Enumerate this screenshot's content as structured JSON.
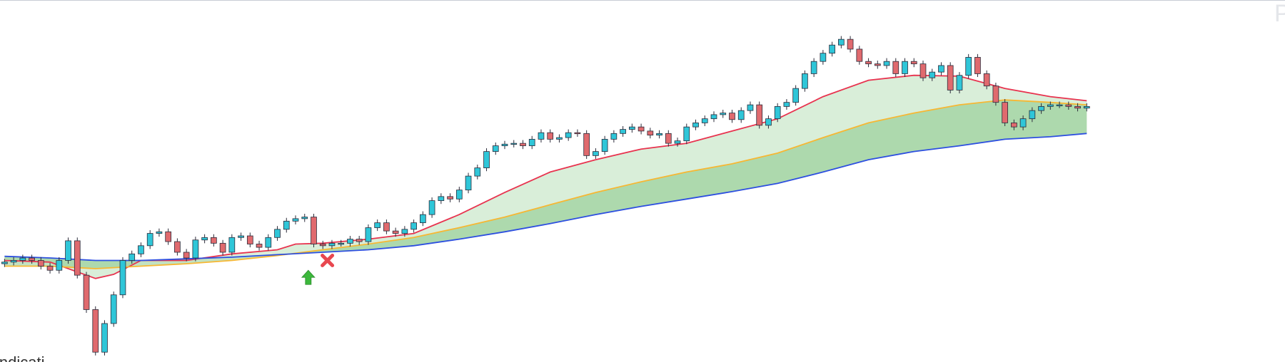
{
  "chart_data": {
    "type": "candlestick",
    "watermark": "P",
    "footer": "indicati",
    "up_color": "#2fc6d8",
    "down_color": "#e06a6e",
    "outline_color": "#2b2b3a",
    "xlim": [
      -0.5,
      140.8
    ],
    "ylim": [
      0,
      442
    ],
    "open": [
      120,
      122,
      124,
      127,
      124,
      117,
      112,
      124,
      148,
      106,
      64,
      12,
      47,
      82,
      124,
      132,
      142,
      157,
      159,
      147,
      134,
      127,
      149,
      152,
      145,
      134,
      152,
      154,
      144,
      140,
      152,
      162,
      172,
      175,
      177,
      144,
      142,
      145,
      145,
      150,
      147,
      164,
      170,
      160,
      157,
      162,
      170,
      180,
      197,
      202,
      199,
      210,
      227,
      237,
      257,
      264,
      266,
      267,
      264,
      272,
      280,
      272,
      274,
      280,
      279,
      252,
      257,
      272,
      279,
      284,
      287,
      282,
      277,
      279,
      267,
      270,
      287,
      292,
      297,
      302,
      304,
      296,
      307,
      314,
      289,
      297,
      312,
      317,
      334,
      352,
      367,
      377,
      387,
      394,
      382,
      367,
      364,
      362,
      367,
      352,
      367,
      364,
      347,
      354,
      362,
      332,
      350,
      372,
      352,
      337,
      317,
      292,
      287,
      297,
      307,
      312,
      314,
      314,
      312,
      310
    ],
    "high": [
      126,
      128,
      131,
      131,
      128,
      121,
      128,
      152,
      152,
      110,
      68,
      51,
      86,
      128,
      136,
      146,
      161,
      163,
      163,
      151,
      138,
      153,
      156,
      156,
      149,
      156,
      158,
      158,
      148,
      156,
      166,
      176,
      179,
      181,
      181,
      148,
      149,
      149,
      154,
      154,
      168,
      174,
      174,
      164,
      166,
      174,
      184,
      201,
      206,
      206,
      214,
      231,
      241,
      261,
      268,
      270,
      271,
      271,
      276,
      284,
      284,
      278,
      284,
      284,
      283,
      261,
      276,
      283,
      288,
      291,
      291,
      286,
      283,
      283,
      274,
      291,
      296,
      301,
      306,
      308,
      308,
      311,
      318,
      318,
      301,
      316,
      321,
      338,
      356,
      371,
      381,
      391,
      398,
      398,
      386,
      371,
      368,
      371,
      371,
      371,
      371,
      368,
      358,
      366,
      366,
      354,
      376,
      376,
      356,
      341,
      321,
      296,
      301,
      311,
      316,
      318,
      318,
      318,
      316,
      316
    ],
    "low": [
      116,
      118,
      120,
      120,
      113,
      108,
      108,
      120,
      102,
      60,
      8,
      8,
      43,
      78,
      120,
      128,
      138,
      153,
      143,
      130,
      123,
      123,
      145,
      141,
      130,
      130,
      148,
      140,
      136,
      136,
      148,
      158,
      168,
      171,
      140,
      138,
      138,
      141,
      141,
      143,
      143,
      160,
      156,
      153,
      153,
      158,
      166,
      176,
      193,
      195,
      195,
      206,
      223,
      233,
      253,
      260,
      262,
      260,
      260,
      268,
      268,
      268,
      270,
      275,
      248,
      248,
      253,
      268,
      275,
      280,
      278,
      273,
      273,
      263,
      263,
      266,
      283,
      288,
      293,
      298,
      292,
      292,
      303,
      285,
      285,
      293,
      308,
      313,
      330,
      348,
      363,
      373,
      383,
      378,
      363,
      360,
      358,
      358,
      348,
      348,
      360,
      343,
      343,
      350,
      328,
      328,
      346,
      348,
      333,
      313,
      288,
      283,
      283,
      293,
      303,
      308,
      310,
      308,
      306,
      306
    ],
    "close": [
      122,
      124,
      127,
      124,
      117,
      112,
      124,
      148,
      106,
      64,
      12,
      47,
      82,
      124,
      132,
      142,
      157,
      159,
      147,
      134,
      127,
      149,
      152,
      145,
      134,
      152,
      154,
      144,
      140,
      152,
      162,
      172,
      175,
      177,
      144,
      142,
      145,
      145,
      150,
      147,
      164,
      170,
      160,
      157,
      162,
      170,
      180,
      197,
      202,
      199,
      210,
      227,
      237,
      257,
      264,
      266,
      267,
      264,
      272,
      280,
      272,
      274,
      280,
      279,
      252,
      257,
      272,
      279,
      284,
      287,
      282,
      277,
      279,
      267,
      270,
      287,
      292,
      297,
      302,
      304,
      296,
      307,
      314,
      289,
      297,
      312,
      317,
      334,
      352,
      367,
      377,
      387,
      394,
      382,
      367,
      364,
      362,
      367,
      352,
      367,
      364,
      347,
      354,
      362,
      332,
      350,
      372,
      352,
      337,
      317,
      292,
      287,
      297,
      307,
      312,
      314,
      314,
      312,
      310,
      312
    ],
    "lines": [
      {
        "color": "#e8334f",
        "x": [
          0,
          5,
          10,
          12,
          15,
          20,
          25,
          30,
          32,
          35,
          40,
          45,
          50,
          55,
          60,
          65,
          70,
          75,
          80,
          85,
          90,
          95,
          100,
          105,
          110,
          115,
          119
        ],
        "values": [
          124,
          122,
          102,
          107,
          124,
          124,
          132,
          137,
          144,
          145,
          150,
          157,
          180,
          207,
          232,
          247,
          260,
          267,
          282,
          297,
          324,
          344,
          350,
          349,
          334,
          324,
          319
        ]
      },
      {
        "color": "#f7b733",
        "x": [
          0,
          5,
          10,
          15,
          20,
          25,
          30,
          35,
          40,
          45,
          50,
          55,
          60,
          65,
          70,
          75,
          80,
          85,
          90,
          95,
          100,
          105,
          110,
          115,
          119
        ],
        "values": [
          117,
          117,
          114,
          117,
          120,
          124,
          130,
          137,
          144,
          152,
          164,
          177,
          192,
          207,
          220,
          232,
          242,
          255,
          274,
          292,
          304,
          314,
          320,
          317,
          314
        ]
      },
      {
        "color": "#2d4fe0",
        "x": [
          0,
          5,
          10,
          15,
          20,
          25,
          30,
          35,
          40,
          45,
          50,
          55,
          60,
          65,
          70,
          75,
          80,
          85,
          90,
          95,
          100,
          105,
          110,
          115,
          119
        ],
        "values": [
          129,
          127,
          124,
          124,
          126,
          128,
          131,
          134,
          137,
          142,
          150,
          159,
          169,
          180,
          190,
          199,
          208,
          218,
          232,
          247,
          257,
          264,
          272,
          275,
          279
        ]
      }
    ],
    "fill_colors": [
      "rgba(160,212,160,0.4)",
      "rgba(120,190,120,0.45)"
    ],
    "signals": [
      {
        "x": 33.4,
        "y": 112,
        "color": "#3cb83c"
      },
      {
        "x": 35.5,
        "y": 124,
        "color": "#e8474f"
      }
    ]
  }
}
